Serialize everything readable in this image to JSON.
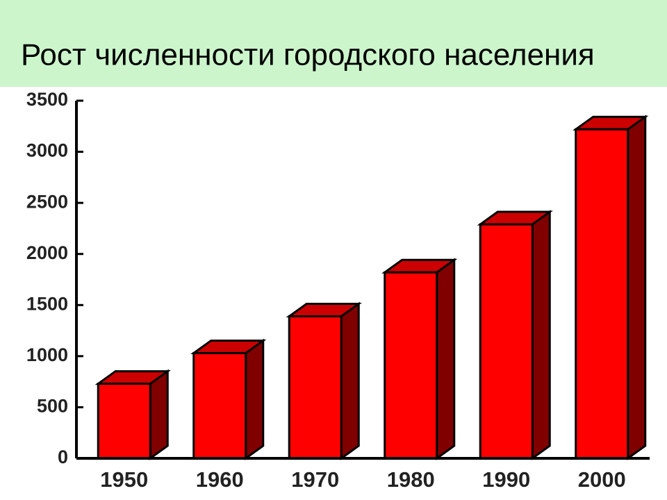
{
  "chart_data": {
    "type": "bar",
    "title": "Рост численности городского населения",
    "categories": [
      "1950",
      "1960",
      "1970",
      "1980",
      "1990",
      "2000"
    ],
    "values": [
      730,
      1030,
      1390,
      1820,
      2290,
      3220
    ],
    "color": "#ff0000",
    "ylim": [
      0,
      3500
    ],
    "yticks": [
      0,
      500,
      1000,
      1500,
      2000,
      2500,
      3000,
      3500
    ],
    "grid": false
  }
}
